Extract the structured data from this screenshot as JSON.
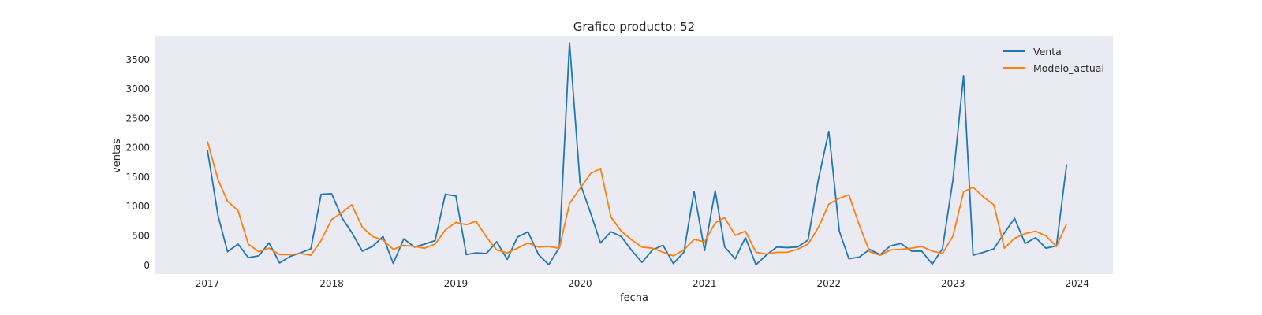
{
  "chart_data": {
    "type": "line",
    "title": "Grafico producto: 52",
    "xlabel": "fecha",
    "ylabel": "ventas",
    "ylim": [
      -150,
      3900
    ],
    "xlim": [
      "2016-08-01",
      "2024-04-15"
    ],
    "yticks": [
      "0",
      "500",
      "1000",
      "1500",
      "2000",
      "2500",
      "3000",
      "3500"
    ],
    "xticks": [
      "2017",
      "2018",
      "2019",
      "2020",
      "2021",
      "2022",
      "2023",
      "2024"
    ],
    "grid": false,
    "legend_position": "top-right",
    "x": [
      "2017-01-01",
      "2017-02-01",
      "2017-03-01",
      "2017-04-01",
      "2017-05-01",
      "2017-06-01",
      "2017-07-01",
      "2017-08-01",
      "2017-09-01",
      "2017-10-01",
      "2017-11-01",
      "2017-12-01",
      "2018-01-01",
      "2018-02-01",
      "2018-03-01",
      "2018-04-01",
      "2018-05-01",
      "2018-06-01",
      "2018-07-01",
      "2018-08-01",
      "2018-09-01",
      "2018-10-01",
      "2018-11-01",
      "2018-12-01",
      "2019-01-01",
      "2019-02-01",
      "2019-03-01",
      "2019-04-01",
      "2019-05-01",
      "2019-06-01",
      "2019-07-01",
      "2019-08-01",
      "2019-09-01",
      "2019-10-01",
      "2019-11-01",
      "2019-12-01",
      "2020-01-01",
      "2020-02-01",
      "2020-03-01",
      "2020-04-01",
      "2020-05-01",
      "2020-06-01",
      "2020-07-01",
      "2020-08-01",
      "2020-09-01",
      "2020-10-01",
      "2020-11-01",
      "2020-12-01",
      "2021-01-01",
      "2021-02-01",
      "2021-03-01",
      "2021-04-01",
      "2021-05-01",
      "2021-06-01",
      "2021-07-01",
      "2021-08-01",
      "2021-09-01",
      "2021-10-01",
      "2021-11-01",
      "2021-12-01",
      "2022-01-01",
      "2022-02-01",
      "2022-03-01",
      "2022-04-01",
      "2022-05-01",
      "2022-06-01",
      "2022-07-01",
      "2022-08-01",
      "2022-09-01",
      "2022-10-01",
      "2022-11-01",
      "2022-12-01",
      "2023-01-01",
      "2023-02-01",
      "2023-03-01",
      "2023-04-01",
      "2023-05-01",
      "2023-06-01",
      "2023-07-01",
      "2023-08-01",
      "2023-09-01",
      "2023-10-01",
      "2023-11-01",
      "2023-12-01"
    ],
    "series": [
      {
        "name": "Venta",
        "color": "#1f77b4",
        "values": [
          1960,
          850,
          230,
          360,
          130,
          160,
          380,
          40,
          150,
          210,
          280,
          1210,
          1220,
          800,
          560,
          240,
          320,
          490,
          30,
          450,
          310,
          360,
          420,
          1210,
          1180,
          180,
          210,
          200,
          400,
          100,
          480,
          570,
          180,
          10,
          300,
          3790,
          1400,
          890,
          380,
          570,
          490,
          250,
          50,
          260,
          340,
          30,
          220,
          1260,
          250,
          1270,
          310,
          110,
          470,
          10,
          170,
          310,
          300,
          310,
          430,
          1450,
          2280,
          580,
          110,
          140,
          270,
          180,
          330,
          370,
          240,
          240,
          20,
          280,
          1460,
          3230,
          170,
          220,
          280,
          550,
          800,
          370,
          470,
          290,
          330,
          1720
        ]
      },
      {
        "name": "Modelo_actual",
        "color": "#ff7f0e",
        "values": [
          2110,
          1460,
          1090,
          930,
          360,
          230,
          290,
          180,
          180,
          200,
          170,
          420,
          780,
          900,
          1030,
          650,
          490,
          430,
          270,
          340,
          320,
          290,
          360,
          600,
          730,
          690,
          750,
          480,
          260,
          210,
          290,
          380,
          310,
          320,
          290,
          1050,
          1310,
          1560,
          1650,
          820,
          580,
          430,
          310,
          290,
          220,
          160,
          260,
          440,
          400,
          720,
          810,
          510,
          580,
          220,
          190,
          220,
          220,
          270,
          360,
          640,
          1040,
          1140,
          1200,
          680,
          230,
          170,
          260,
          270,
          290,
          320,
          240,
          200,
          500,
          1250,
          1330,
          1160,
          1030,
          290,
          460,
          540,
          580,
          500,
          320,
          710
        ]
      }
    ]
  }
}
